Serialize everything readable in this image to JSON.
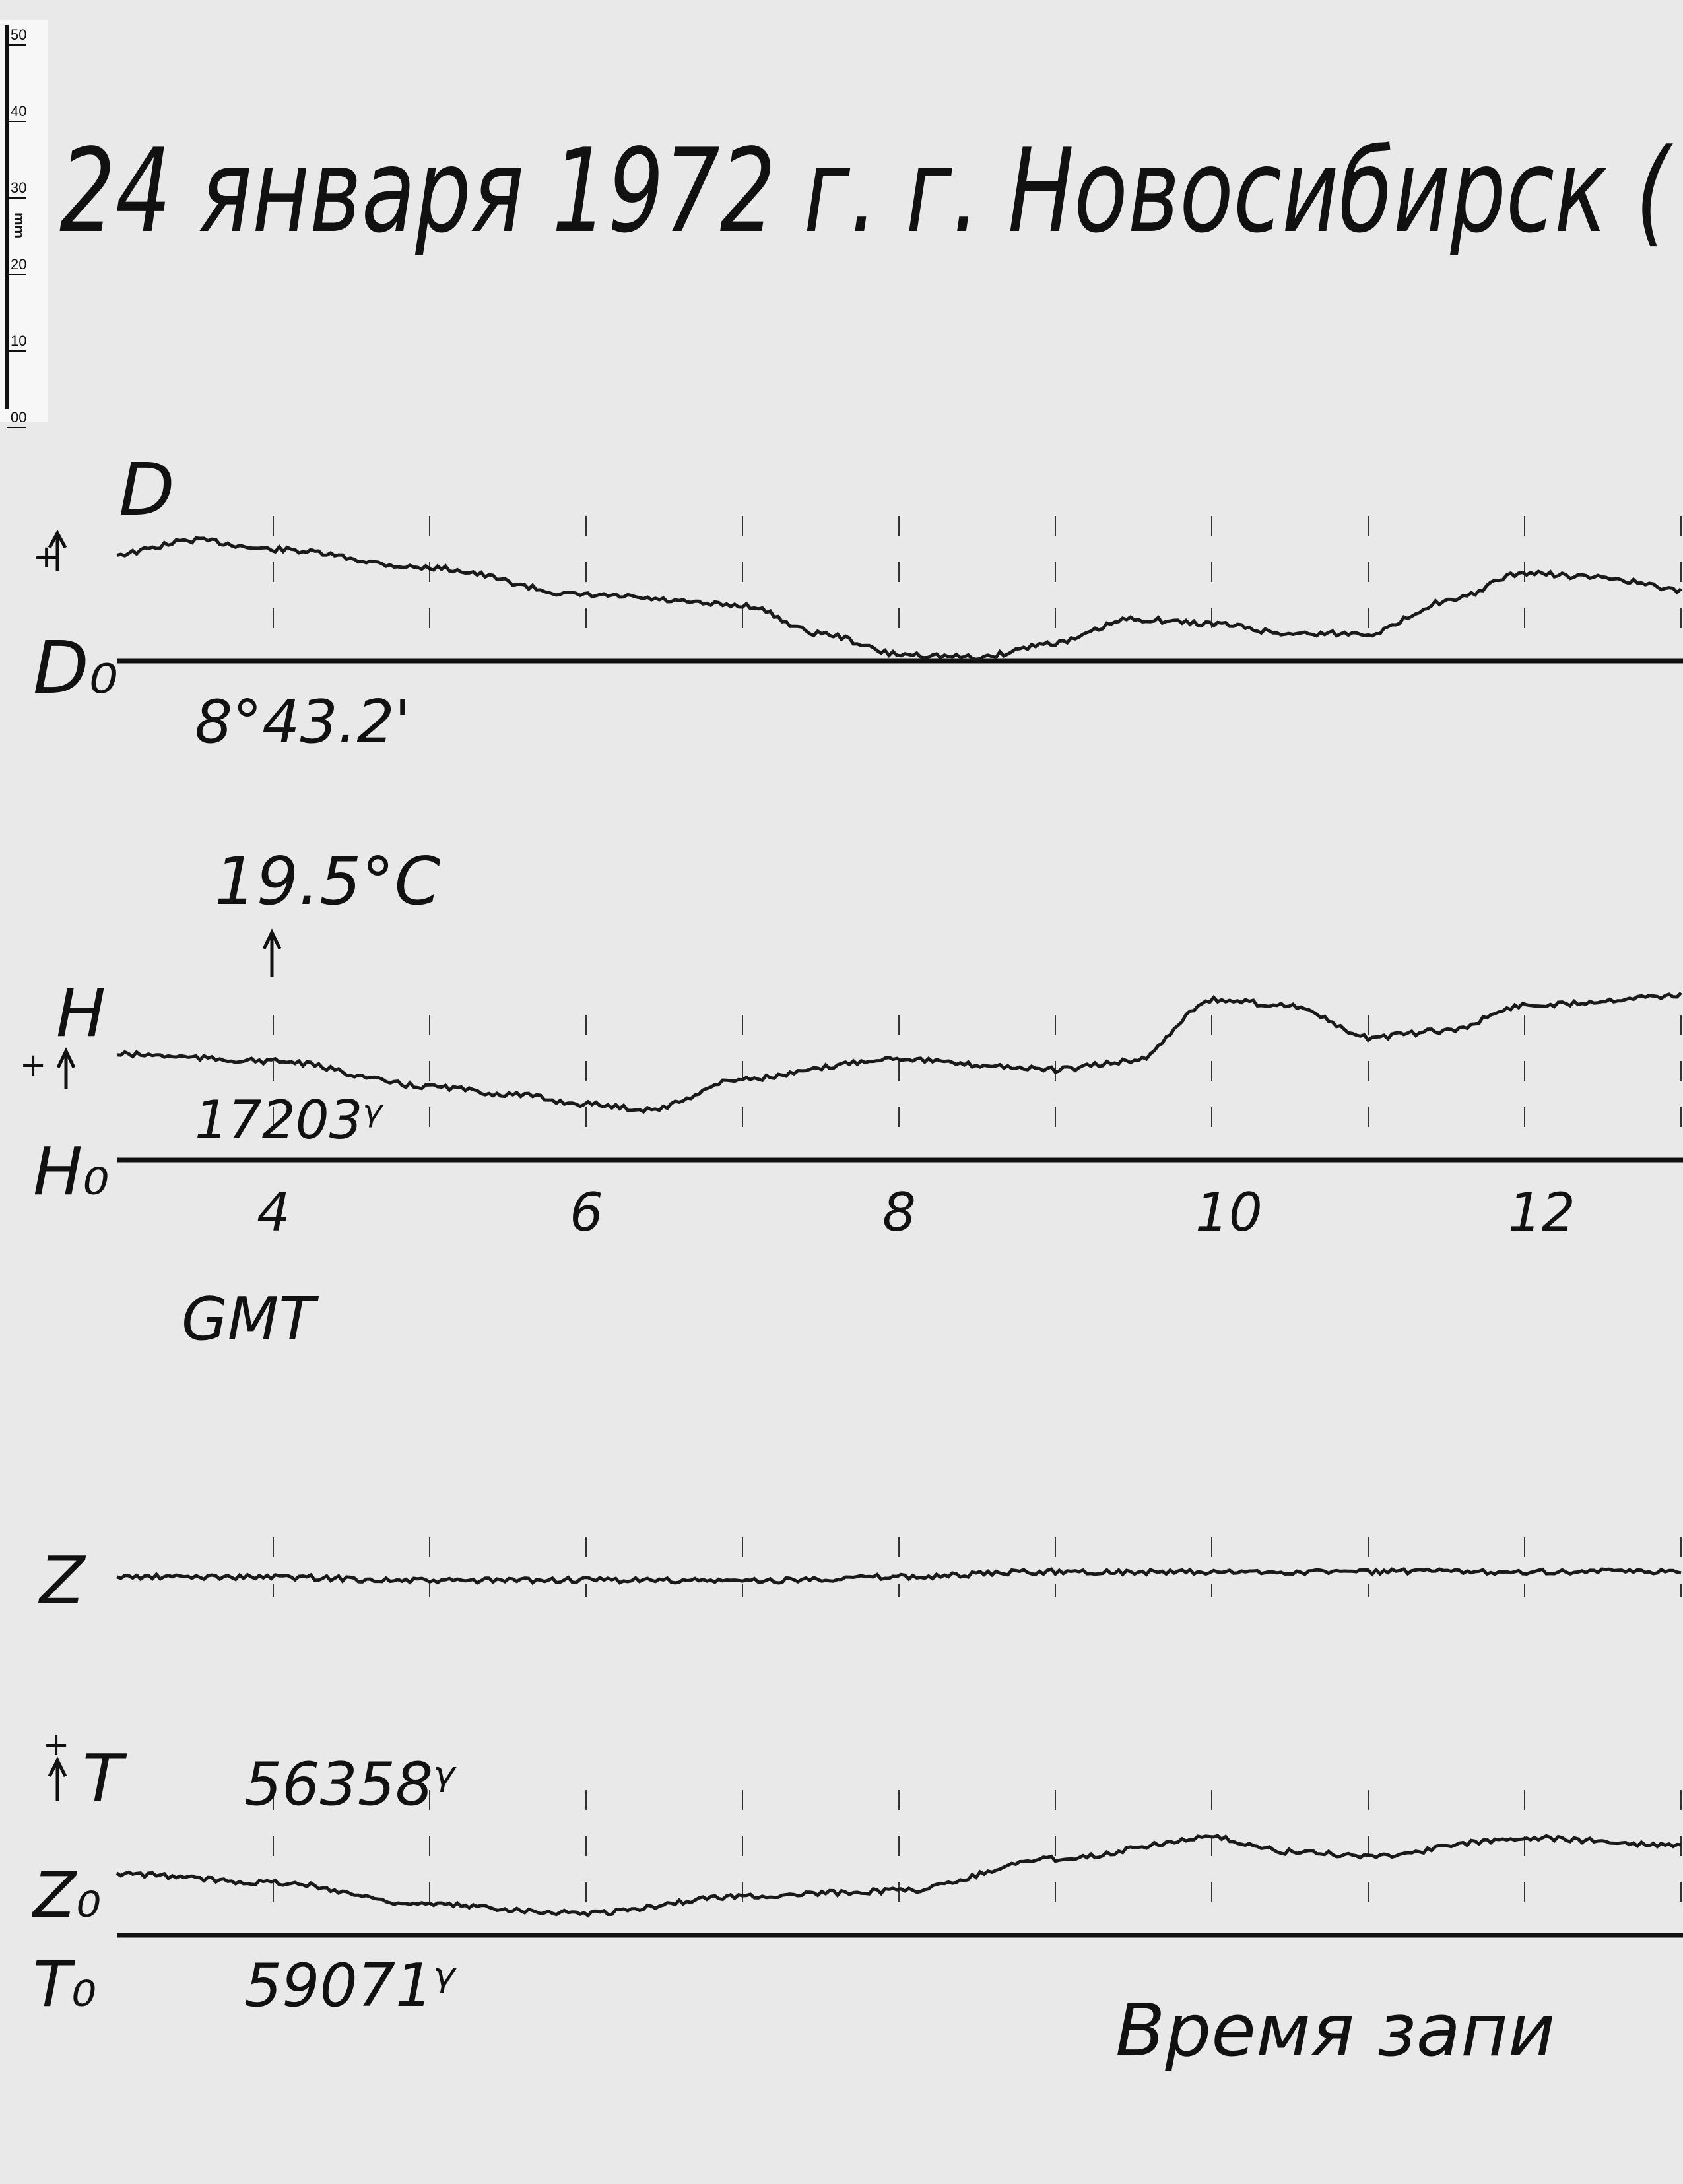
{
  "title": "24 января 1972 г.  г. Новосибирск (",
  "ruler": {
    "unit": "mm",
    "labels": [
      "50",
      "40",
      "30",
      "20",
      "10",
      "00"
    ]
  },
  "labels": {
    "d": "D",
    "d0": "D₀",
    "d0_value": "8°43.2'",
    "temp": "19.5°C",
    "h": "H",
    "h0": "H₀",
    "h0_value": "17203ᵞ",
    "gmt": "GMT",
    "z": "Z",
    "t": "T",
    "t_value": "56358ᵞ",
    "z0": "Z₀",
    "t0": "T₀",
    "t0_value": "59071ᵞ",
    "plus": "+",
    "footer": "Время запи"
  },
  "chart_data": {
    "type": "line",
    "title": "24 января 1972 г.  г. Новосибирск (",
    "xlabel": "GMT",
    "x_ticks": [
      "4",
      "6",
      "8",
      "10",
      "12"
    ],
    "xlim": [
      3,
      13
    ],
    "series": [
      {
        "name": "D",
        "baseline": "D₀ 8°43.2'",
        "x": [
          3,
          3.5,
          4,
          5,
          6,
          7,
          7.5,
          8,
          8.5,
          9,
          9.5,
          10,
          10.5,
          11,
          11.5,
          12,
          12.5,
          13
        ],
        "y": [
          14.0,
          15.8,
          14.6,
          12.2,
          8.6,
          7.3,
          3.6,
          0.9,
          0.5,
          2.4,
          5.5,
          4.9,
          3.6,
          3.6,
          7.8,
          11.5,
          10.9,
          9.3
        ]
      },
      {
        "name": "H",
        "baseline": "H₀ 17203ᵞ",
        "x": [
          3,
          4,
          5,
          5.5,
          6,
          6.4,
          7,
          8,
          8.5,
          9,
          9.5,
          10,
          10.5,
          11,
          11.5,
          12,
          13
        ],
        "y": [
          13.8,
          12.9,
          9.6,
          8.6,
          7.3,
          6.6,
          10.6,
          13.3,
          12.4,
          11.8,
          12.9,
          20.9,
          20.2,
          16.0,
          16.9,
          20.2,
          21.5
        ]
      },
      {
        "name": "Z",
        "x": [
          3,
          4,
          5,
          6,
          7,
          8,
          9,
          10,
          11,
          12,
          13
        ],
        "y": [
          0,
          0,
          -0.5,
          -0.4,
          -0.5,
          0,
          0.7,
          0.6,
          0.7,
          0.7,
          0.7
        ]
      },
      {
        "name": "T",
        "baseline": "Z₀ / T₀ 59071ᵞ",
        "x": [
          3,
          4,
          5,
          6,
          7,
          8,
          9,
          10,
          10.5,
          11,
          12,
          13
        ],
        "y": [
          8.0,
          6.9,
          4.0,
          2.9,
          5.1,
          5.8,
          10.0,
          12.7,
          10.9,
          10.4,
          12.7,
          11.8
        ]
      }
    ],
    "y_unit": "mm deflection",
    "annotations": [
      "19.5°C at 4 GMT",
      "T 56358ᵞ"
    ]
  },
  "colors": {
    "paper": "#e9e9e9",
    "ink": "#111111"
  }
}
